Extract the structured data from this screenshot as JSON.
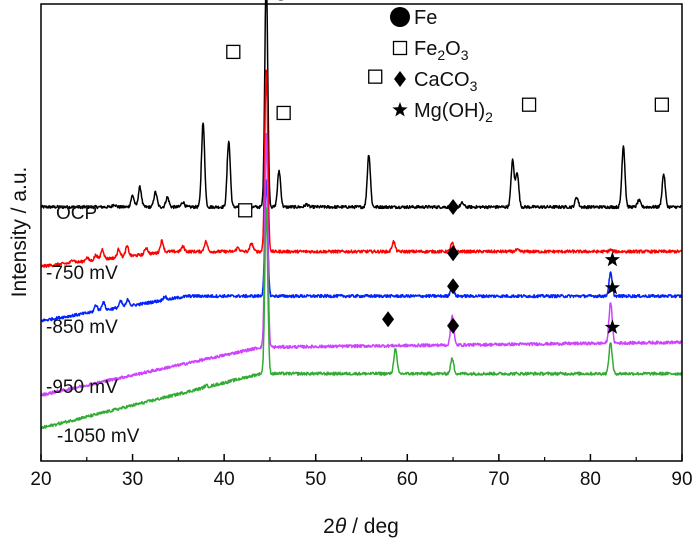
{
  "chart_data": {
    "type": "line",
    "title": "",
    "xlabel_prefix": "2",
    "xlabel_italic": "θ",
    "xlabel_suffix": " / deg",
    "ylabel": "Intensity / a.u.",
    "xlim": [
      20,
      90
    ],
    "xticks": [
      20,
      30,
      40,
      50,
      60,
      70,
      80,
      90
    ],
    "legend": {
      "position": "top-center",
      "entries": [
        {
          "marker": "filled-circle",
          "label": "Fe"
        },
        {
          "marker": "open-square",
          "label": "Fe",
          "sub1": "2",
          "mid": "O",
          "sub2": "3"
        },
        {
          "marker": "filled-diamond",
          "label": "CaCO",
          "sub1": "3"
        },
        {
          "marker": "star",
          "label": "Mg(OH)",
          "sub1": "2"
        }
      ]
    },
    "series": [
      {
        "name": "OCP",
        "color": "#000000",
        "baseline": 1.0,
        "peaks": [
          [
            28.0,
            0.08
          ],
          [
            30.0,
            0.35
          ],
          [
            30.8,
            0.6
          ],
          [
            32.5,
            0.45
          ],
          [
            33.8,
            0.3
          ],
          [
            35.5,
            0.15
          ],
          [
            37.7,
            2.55
          ],
          [
            40.5,
            2.0
          ],
          [
            44.6,
            7.0
          ],
          [
            46.0,
            1.1
          ],
          [
            49.0,
            0.08
          ],
          [
            55.8,
            1.6
          ],
          [
            66.0,
            0.12
          ],
          [
            71.5,
            1.4
          ],
          [
            72.0,
            1.05
          ],
          [
            78.5,
            0.3
          ],
          [
            83.6,
            1.85
          ],
          [
            85.3,
            0.2
          ],
          [
            88.0,
            1.0
          ]
        ],
        "markers": [
          {
            "type": "filled-circle",
            "x": 46.2,
            "y": 7.5
          },
          {
            "type": "open-square",
            "x": 41.0,
            "y": 5.7
          },
          {
            "type": "open-square",
            "x": 46.5,
            "y": 3.85
          },
          {
            "type": "open-square",
            "x": 56.5,
            "y": 4.95
          },
          {
            "type": "open-square",
            "x": 73.3,
            "y": 4.1
          },
          {
            "type": "open-square",
            "x": 87.8,
            "y": 4.1
          }
        ]
      },
      {
        "name": "-750 mV",
        "color": "#ff0000",
        "baseline": -0.35,
        "peaks": [
          [
            23.5,
            0.1
          ],
          [
            25.0,
            0.1
          ],
          [
            26.0,
            0.15
          ],
          [
            26.7,
            0.3
          ],
          [
            28.5,
            0.25
          ],
          [
            29.4,
            0.3
          ],
          [
            31.5,
            0.2
          ],
          [
            33.2,
            0.35
          ],
          [
            35.5,
            0.15
          ],
          [
            38.0,
            0.3
          ],
          [
            41.5,
            0.12
          ],
          [
            43.0,
            0.25
          ],
          [
            44.6,
            5.5
          ],
          [
            58.5,
            0.3
          ],
          [
            64.9,
            0.25
          ],
          [
            72.0,
            0.05
          ],
          [
            82.2,
            0.05
          ]
        ],
        "markers": [
          {
            "type": "open-square",
            "x": 42.3,
            "y": 0.9
          },
          {
            "type": "filled-diamond",
            "x": 65.0,
            "y": 1.0
          }
        ]
      },
      {
        "name": "-850 mV",
        "color": "#0022ff",
        "baseline": -1.7,
        "peaks": [
          [
            26.0,
            0.2
          ],
          [
            26.8,
            0.25
          ],
          [
            28.7,
            0.18
          ],
          [
            29.5,
            0.2
          ],
          [
            33.5,
            0.1
          ],
          [
            44.6,
            3.5
          ],
          [
            64.9,
            0.35
          ],
          [
            82.2,
            0.7
          ]
        ],
        "markers": [
          {
            "type": "filled-diamond",
            "x": 65.0,
            "y": -0.4
          },
          {
            "type": "star",
            "x": 82.4,
            "y": -0.6
          }
        ]
      },
      {
        "name": "-950 mV",
        "color": "#cc44ff",
        "baseline": -3.25,
        "peaks": [
          [
            44.6,
            6.5
          ],
          [
            64.9,
            0.9
          ],
          [
            82.2,
            1.25
          ]
        ],
        "markers": [
          {
            "type": "filled-diamond",
            "x": 65.0,
            "y": -1.4
          },
          {
            "type": "star",
            "x": 82.4,
            "y": -1.45
          }
        ]
      },
      {
        "name": "-1050 mV",
        "color": "#33aa33",
        "baseline": -4.05,
        "peaks": [
          [
            38.0,
            0.05
          ],
          [
            44.6,
            5.0
          ],
          [
            58.7,
            0.75
          ],
          [
            64.9,
            0.45
          ],
          [
            82.2,
            0.95
          ]
        ],
        "markers": [
          {
            "type": "filled-diamond",
            "x": 57.9,
            "y": -2.4
          },
          {
            "type": "filled-diamond",
            "x": 65.0,
            "y": -2.6
          },
          {
            "type": "star",
            "x": 82.4,
            "y": -2.65
          }
        ]
      }
    ]
  }
}
